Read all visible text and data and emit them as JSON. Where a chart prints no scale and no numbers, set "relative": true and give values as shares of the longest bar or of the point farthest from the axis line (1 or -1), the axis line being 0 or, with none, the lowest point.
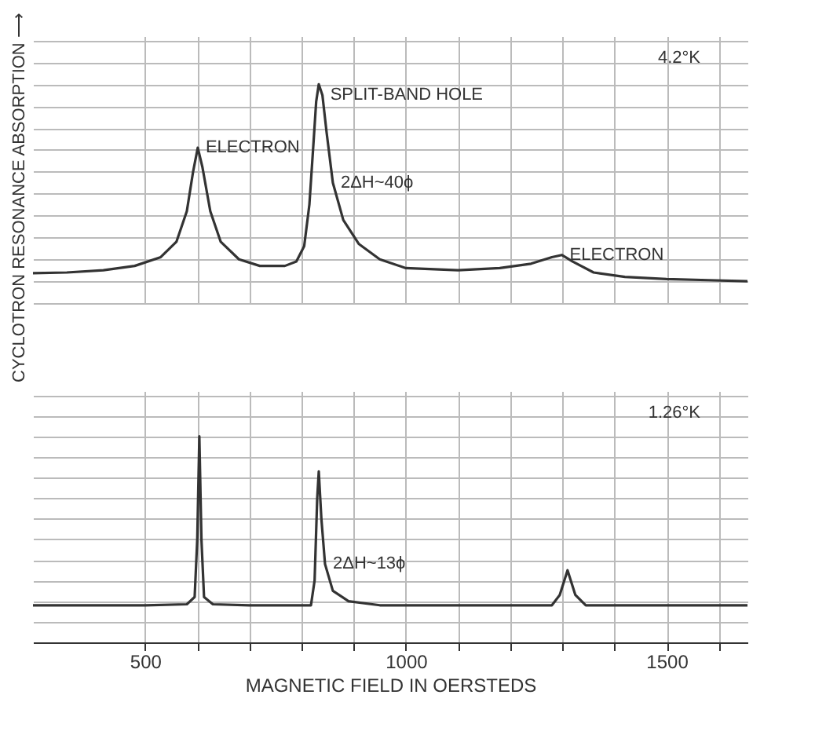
{
  "chart_data": [
    {
      "type": "line",
      "relative": true,
      "ylabel": "CYCLOTRON RESONANCE ABSORPTION ⟶",
      "xlim": [
        285,
        1655
      ],
      "xticks": [
        500,
        {
          "value": 600,
          "label": null
        },
        {
          "value": 700,
          "label": null
        },
        {
          "value": 800,
          "label": null
        },
        {
          "value": 900,
          "label": null
        },
        1000,
        {
          "value": 1100,
          "label": null
        },
        {
          "value": 1200,
          "label": null
        },
        {
          "value": 1300,
          "label": null
        },
        {
          "value": 1400,
          "label": null
        },
        1500,
        {
          "value": 1600,
          "label": null
        }
      ],
      "tick_labels": false,
      "grid": true,
      "series": [
        {
          "color": "#333333",
          "x": [
            285,
            350,
            420,
            480,
            530,
            560,
            580,
            592,
            601,
            610,
            625,
            645,
            680,
            720,
            768,
            790,
            805,
            815,
            822,
            828,
            833,
            840,
            848,
            860,
            880,
            910,
            950,
            1000,
            1100,
            1180,
            1240,
            1280,
            1299,
            1320,
            1360,
            1420,
            1500,
            1580,
            1655
          ],
          "values": [
            0.137,
            0.14,
            0.15,
            0.17,
            0.21,
            0.28,
            0.42,
            0.6,
            0.71,
            0.62,
            0.42,
            0.28,
            0.2,
            0.17,
            0.17,
            0.19,
            0.26,
            0.45,
            0.7,
            0.92,
            1.0,
            0.95,
            0.78,
            0.55,
            0.38,
            0.27,
            0.2,
            0.16,
            0.15,
            0.16,
            0.18,
            0.21,
            0.22,
            0.19,
            0.14,
            0.12,
            0.11,
            0.105,
            0.1
          ]
        }
      ],
      "annotations": [
        "4.2°K",
        {
          "text": "ELECTRON",
          "x": 601,
          "y": 0.71
        },
        {
          "text": "SPLIT-BAND HOLE",
          "x": 840,
          "y": 0.95
        },
        {
          "text": "2ΔH~40ϕ",
          "x": 860,
          "y": 0.55
        },
        {
          "text": "ELECTRON",
          "x": 1299,
          "y": 0.22
        }
      ]
    },
    {
      "type": "line",
      "relative": true,
      "xlabel": "MAGNETIC FIELD IN OERSTEDS",
      "xlim": [
        285,
        1655
      ],
      "xticks": [
        500,
        {
          "value": 600,
          "label": null
        },
        {
          "value": 700,
          "label": null
        },
        {
          "value": 800,
          "label": null
        },
        {
          "value": 900,
          "label": null
        },
        1000,
        {
          "value": 1100,
          "label": null
        },
        {
          "value": 1200,
          "label": null
        },
        {
          "value": 1300,
          "label": null
        },
        {
          "value": 1400,
          "label": null
        },
        1500,
        {
          "value": 1600,
          "label": null
        }
      ],
      "tick_labels": "x",
      "grid": true,
      "series": [
        {
          "color": "#333333",
          "x": [
            285,
            500,
            580,
            595,
            600,
            604,
            608,
            613,
            630,
            700,
            818,
            825,
            830,
            833,
            838,
            845,
            860,
            890,
            950,
            1280,
            1295,
            1310,
            1325,
            1345,
            1655
          ],
          "values": [
            0.18,
            0.18,
            0.185,
            0.22,
            0.5,
            1.0,
            0.5,
            0.22,
            0.185,
            0.18,
            0.18,
            0.3,
            0.7,
            0.83,
            0.6,
            0.38,
            0.25,
            0.2,
            0.18,
            0.18,
            0.23,
            0.35,
            0.23,
            0.18,
            0.18
          ]
        }
      ],
      "annotations": [
        "1.26°K",
        {
          "text": "2ΔH~13ϕ",
          "x": 845,
          "y": 0.38
        }
      ]
    }
  ]
}
